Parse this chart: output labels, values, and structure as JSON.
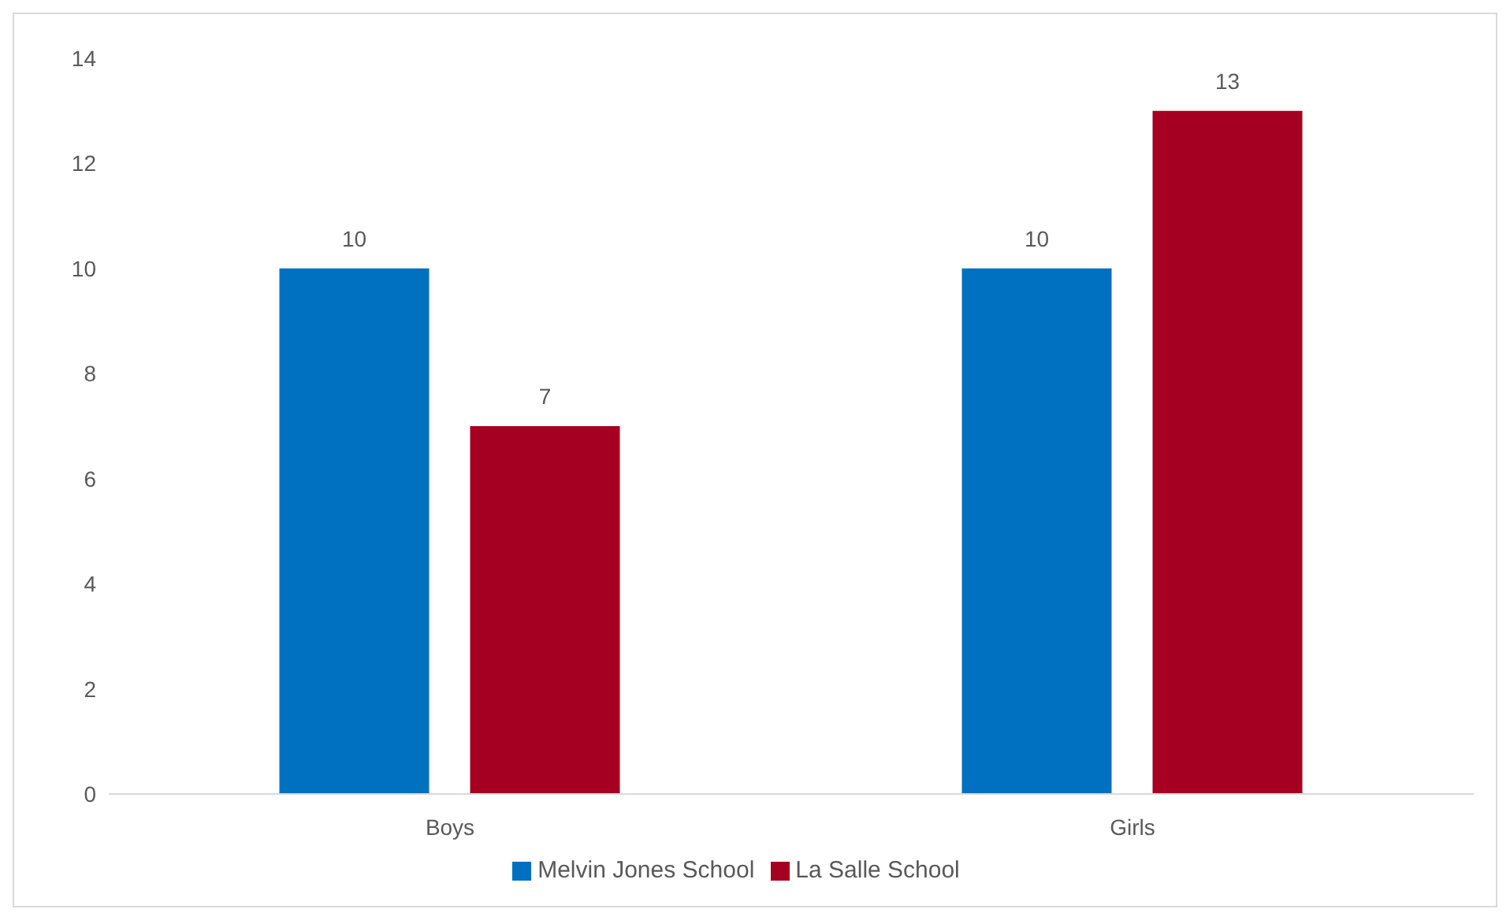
{
  "chart_data": {
    "type": "bar",
    "categories": [
      "Boys",
      "Girls"
    ],
    "series": [
      {
        "name": "Melvin Jones School",
        "color": "#0070c0",
        "values": [
          10,
          10
        ]
      },
      {
        "name": "La Salle School",
        "color": "#a50021",
        "values": [
          7,
          13
        ]
      }
    ],
    "ylim": [
      0,
      14
    ],
    "yticks": [
      0,
      2,
      4,
      6,
      8,
      10,
      12,
      14
    ],
    "grid": false,
    "legend": "bottom",
    "data_labels": true
  }
}
